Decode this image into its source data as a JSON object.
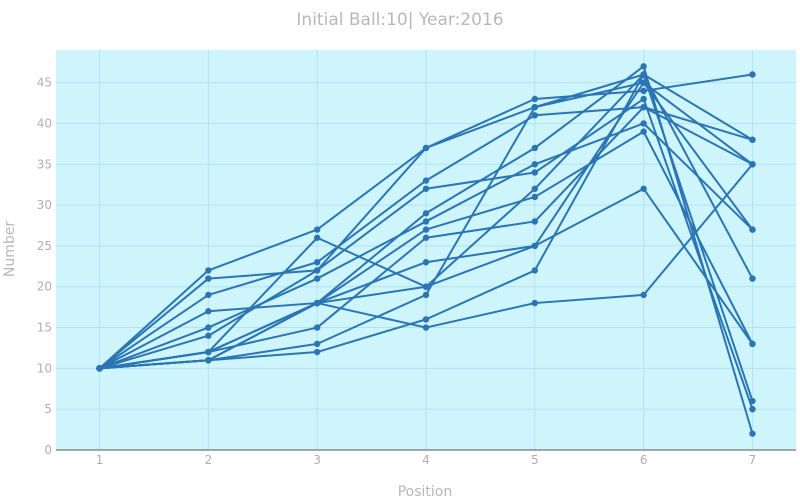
{
  "chart_data": {
    "type": "line",
    "title": "Initial Ball:10| Year:2016",
    "xlabel": "Position",
    "ylabel": "Number",
    "x": [
      1,
      2,
      3,
      4,
      5,
      6,
      7
    ],
    "xlim": [
      0.6,
      7.4
    ],
    "ylim": [
      0,
      49
    ],
    "yticks": [
      0,
      5,
      10,
      15,
      20,
      25,
      30,
      35,
      40,
      45
    ],
    "grid": true,
    "legend": "none",
    "colors": {
      "plot_bg": "#cff5fc",
      "line": "#2b75b5",
      "grid": "#b4e3ee",
      "axis": "#888888"
    },
    "series": [
      {
        "values": [
          10,
          22,
          27,
          37,
          43,
          44,
          46
        ]
      },
      {
        "values": [
          10,
          21,
          22,
          37,
          42,
          45,
          35
        ]
      },
      {
        "values": [
          10,
          19,
          23,
          33,
          41,
          42,
          38
        ]
      },
      {
        "values": [
          10,
          17,
          18,
          29,
          37,
          47,
          2
        ]
      },
      {
        "values": [
          10,
          15,
          21,
          28,
          35,
          40,
          27
        ]
      },
      {
        "values": [
          10,
          14,
          22,
          32,
          34,
          43,
          5
        ]
      },
      {
        "values": [
          10,
          12,
          18,
          27,
          31,
          39,
          13
        ]
      },
      {
        "values": [
          10,
          12,
          26,
          20,
          32,
          46,
          21
        ]
      },
      {
        "values": [
          10,
          11,
          13,
          19,
          42,
          46,
          6
        ]
      },
      {
        "values": [
          10,
          11,
          18,
          23,
          25,
          45,
          27
        ]
      },
      {
        "values": [
          10,
          12,
          15,
          26,
          28,
          42,
          35
        ]
      },
      {
        "values": [
          10,
          11,
          12,
          16,
          22,
          46,
          38
        ]
      },
      {
        "values": [
          10,
          11,
          18,
          15,
          18,
          19,
          35
        ]
      },
      {
        "values": [
          10,
          12,
          18,
          20,
          25,
          32,
          13
        ]
      }
    ]
  }
}
